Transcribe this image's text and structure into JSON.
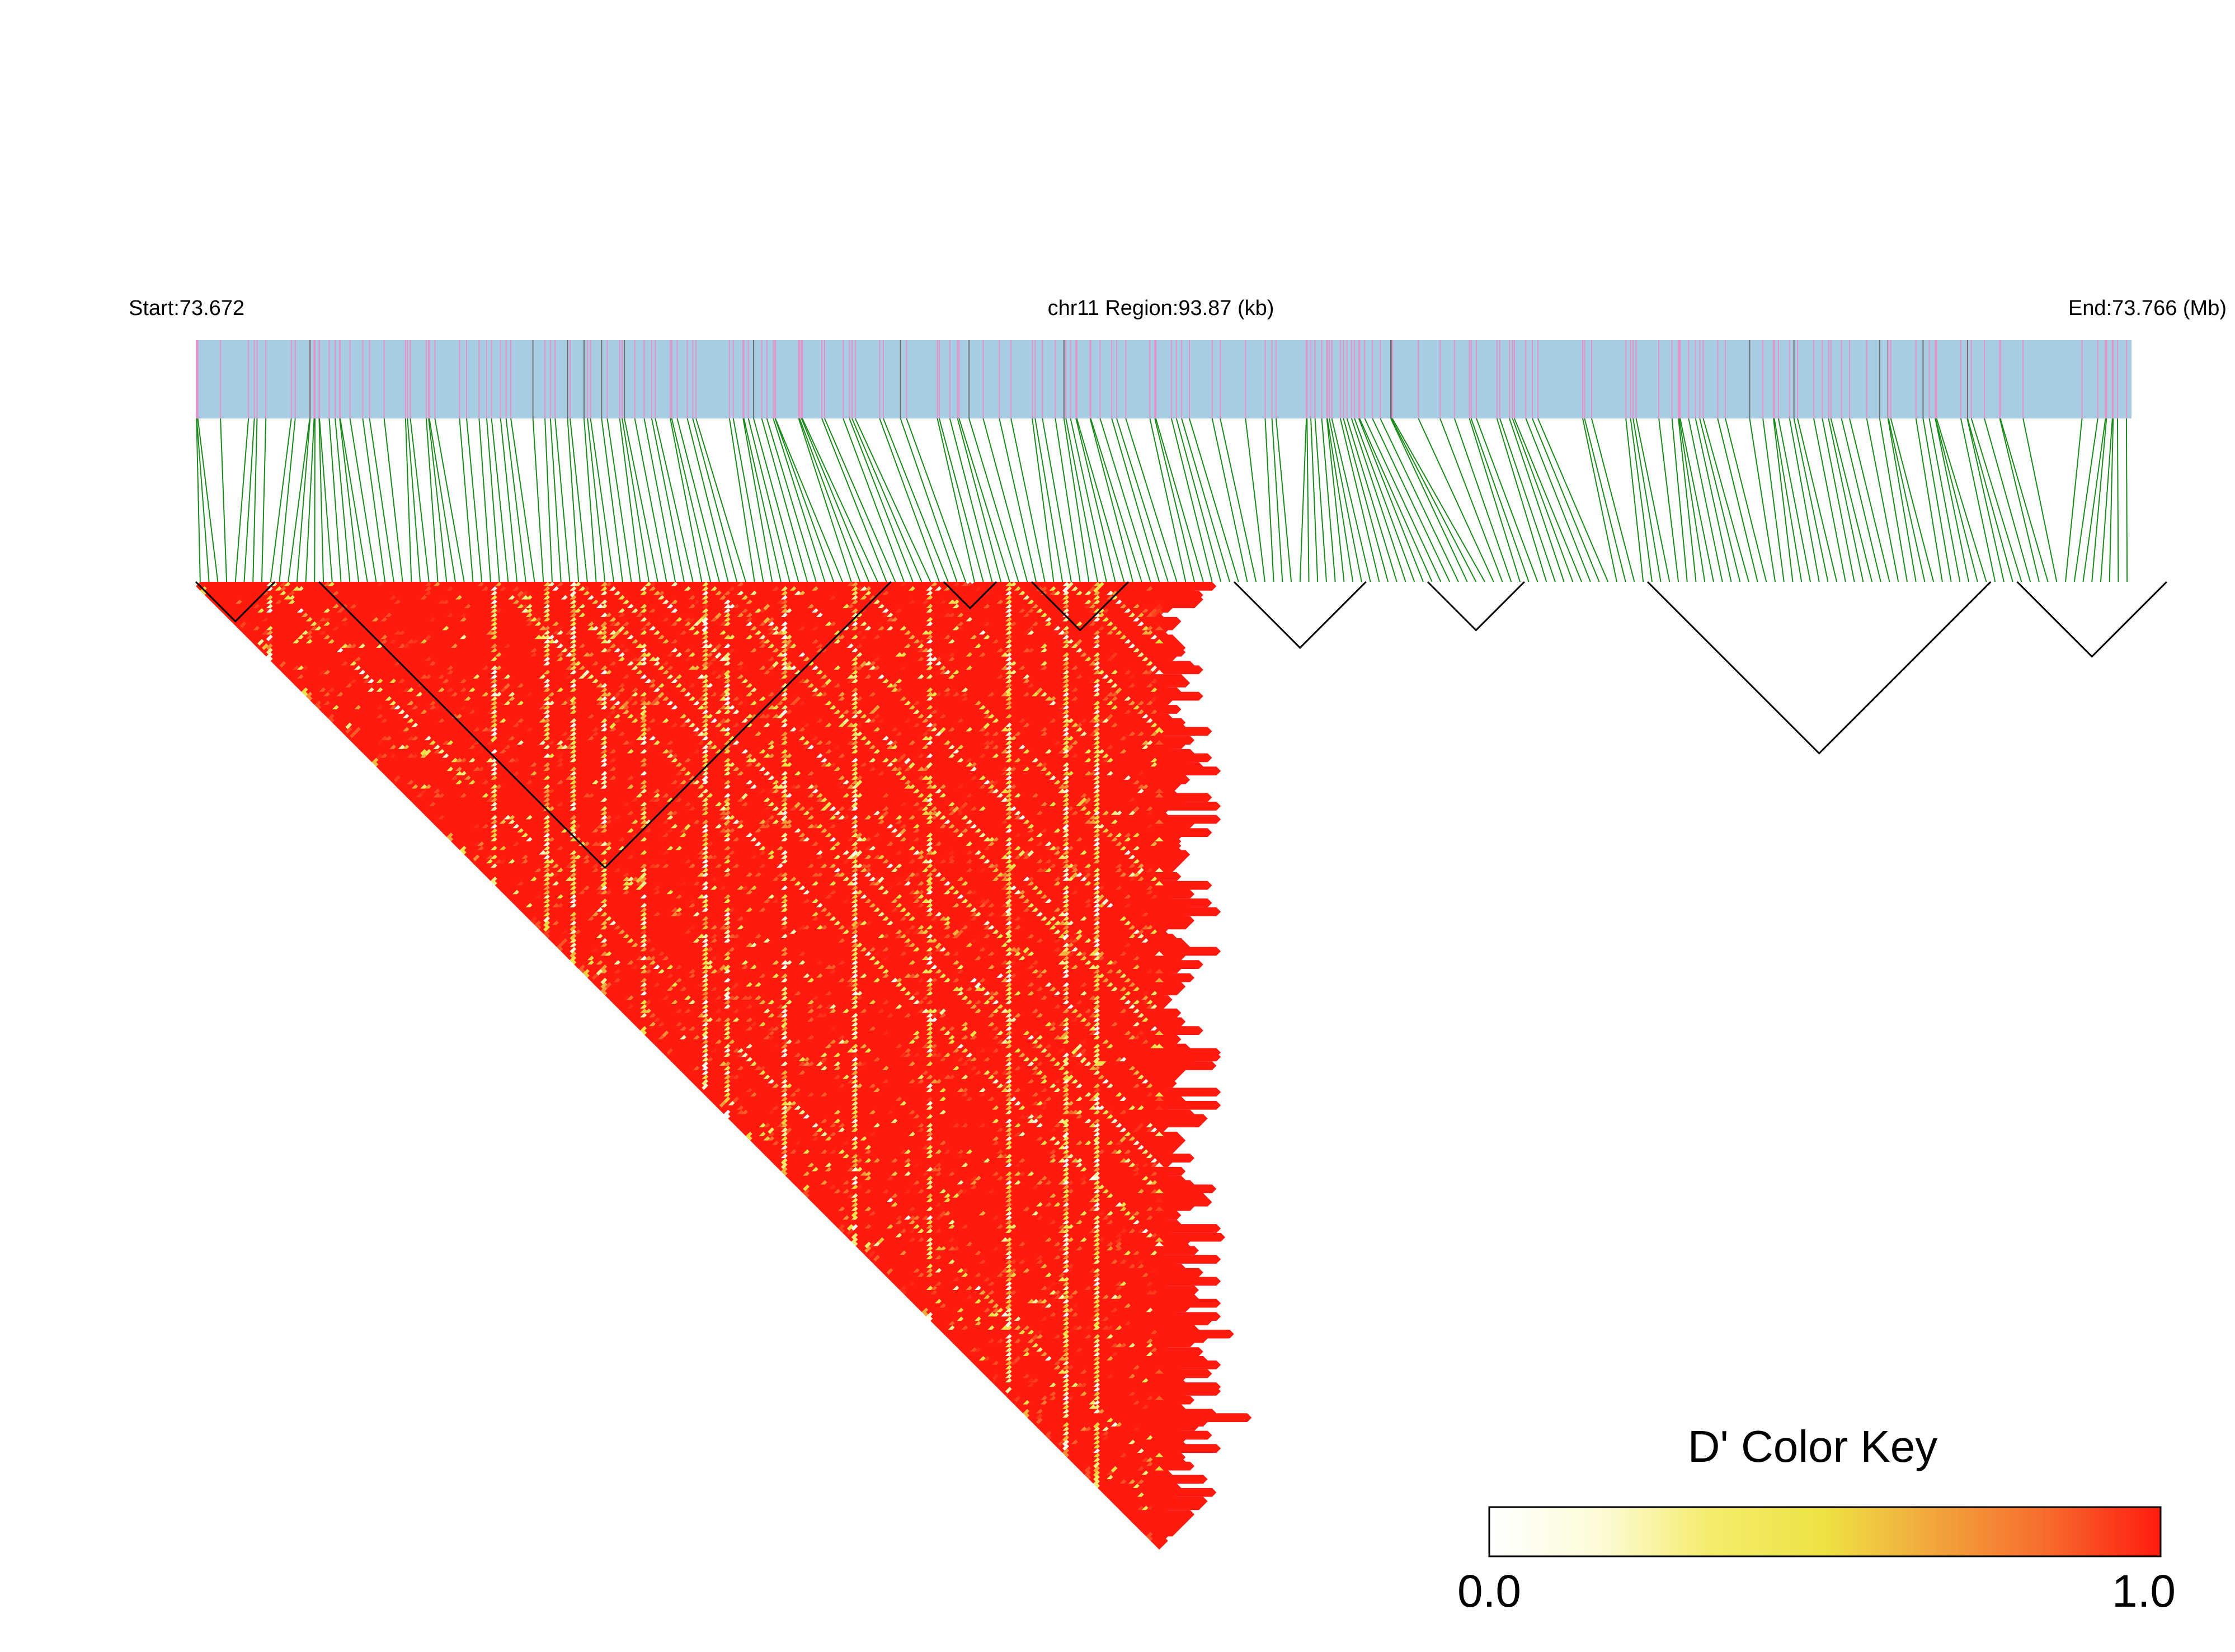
{
  "header": {
    "start_label": "Start:73.672",
    "region_label": "chr11 Region:93.87 (kb)",
    "end_label": "End:73.766 (Mb)"
  },
  "color_key": {
    "title": "D' Color Key",
    "min_label": "0.0",
    "max_label": "1.0",
    "stops": [
      "#ffffff",
      "#fdfbd6",
      "#f4ec6a",
      "#eee244",
      "#f2a43c",
      "#f76a2c",
      "#ff1a10"
    ]
  },
  "colors": {
    "track_background": "#a6cde3",
    "snp_marker": "#e890c8",
    "snp_marker_dark": "#707070",
    "connector": "#1a8a1a",
    "high_ld": "#ff0000",
    "block_outline": "#000000"
  },
  "chart_data": {
    "type": "heatmap",
    "description_type": "linkage disequilibrium (D') triangle heatmap",
    "chromosome": "chr11",
    "region_start_mb": 73.672,
    "region_end_mb": 73.766,
    "region_size_kb": 93.87,
    "measure": "D'",
    "value_range": [
      0.0,
      1.0
    ],
    "dominant_value": 1.0,
    "approx_snp_count": 220,
    "ld_blocks": [
      {
        "snp_range": [
          0,
          8
        ]
      },
      {
        "snp_range": [
          14,
          78
        ]
      },
      {
        "snp_range": [
          85,
          90
        ]
      },
      {
        "snp_range": [
          95,
          105
        ]
      },
      {
        "snp_range": [
          118,
          132
        ]
      },
      {
        "snp_range": [
          140,
          150
        ]
      },
      {
        "snp_range": [
          165,
          203
        ]
      },
      {
        "snp_range": [
          207,
          223
        ]
      }
    ],
    "low_ld_bands": [
      {
        "snp_index": 17,
        "strength": 0.6
      },
      {
        "snp_index": 68,
        "strength": 0.75
      },
      {
        "snp_index": 80,
        "strength": 0.8
      },
      {
        "snp_index": 86,
        "strength": 0.9
      },
      {
        "snp_index": 93,
        "strength": 0.6
      },
      {
        "snp_index": 102,
        "strength": 0.7
      },
      {
        "snp_index": 116,
        "strength": 0.9
      },
      {
        "snp_index": 121,
        "strength": 0.7
      },
      {
        "snp_index": 134,
        "strength": 0.8
      },
      {
        "snp_index": 150,
        "strength": 0.8
      },
      {
        "snp_index": 167,
        "strength": 0.6
      },
      {
        "snp_index": 185,
        "strength": 0.9
      },
      {
        "snp_index": 198,
        "strength": 0.95
      },
      {
        "snp_index": 205,
        "strength": 0.9
      }
    ]
  }
}
